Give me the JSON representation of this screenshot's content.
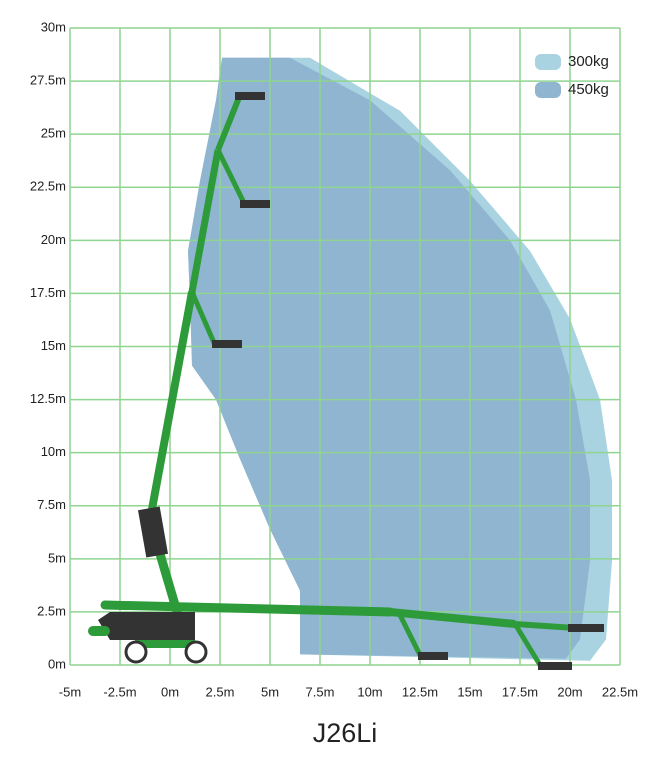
{
  "chart_data": {
    "type": "range",
    "title": "J26Li",
    "xlim": [
      -5,
      22.5
    ],
    "ylim": [
      0,
      30
    ],
    "xticks": [
      {
        "value": -5,
        "label": "-5m"
      },
      {
        "value": -2.5,
        "label": "-2.5m"
      },
      {
        "value": 0,
        "label": "0m"
      },
      {
        "value": 2.5,
        "label": "2.5m"
      },
      {
        "value": 5,
        "label": "5m"
      },
      {
        "value": 7.5,
        "label": "7.5m"
      },
      {
        "value": 10,
        "label": "10m"
      },
      {
        "value": 12.5,
        "label": "12.5m"
      },
      {
        "value": 15,
        "label": "15m"
      },
      {
        "value": 17.5,
        "label": "17.5m"
      },
      {
        "value": 20,
        "label": "20m"
      },
      {
        "value": 22.5,
        "label": "22.5m"
      }
    ],
    "yticks": [
      {
        "value": 0,
        "label": "0m"
      },
      {
        "value": 2.5,
        "label": "2.5m"
      },
      {
        "value": 5,
        "label": "5m"
      },
      {
        "value": 7.5,
        "label": "7.5m"
      },
      {
        "value": 10,
        "label": "10m"
      },
      {
        "value": 12.5,
        "label": "12.5m"
      },
      {
        "value": 15,
        "label": "15m"
      },
      {
        "value": 17.5,
        "label": "17.5m"
      },
      {
        "value": 20,
        "label": "20m"
      },
      {
        "value": 22.5,
        "label": "22.5m"
      },
      {
        "value": 25,
        "label": "25m"
      },
      {
        "value": 27.5,
        "label": "27.5m"
      },
      {
        "value": 30,
        "label": "30m"
      }
    ],
    "grid": true,
    "grid_color": "#8fd48f",
    "legend": "top-right",
    "series": [
      {
        "name": "300kg",
        "color": "#a9d3e0",
        "x": [
          2.6,
          7.0,
          11.5,
          15,
          18,
          20,
          21.5,
          22.1,
          22.1,
          21.8,
          21,
          6.5,
          6.5,
          5,
          3.5,
          2.3,
          1.1,
          1,
          0.9,
          1.5,
          2.3
        ],
        "y": [
          28.6,
          28.6,
          26.1,
          22.8,
          19.5,
          16.3,
          12.5,
          8.7,
          4.9,
          1.2,
          0.2,
          0.5,
          3.5,
          6.4,
          9.7,
          12.5,
          14.1,
          17.2,
          19.5,
          22.8,
          26.6
        ]
      },
      {
        "name": "450kg",
        "color": "#8fb5d0",
        "x": [
          2.6,
          6,
          10,
          14,
          17,
          19,
          20.3,
          21,
          21,
          20.5,
          19.8,
          6.5,
          6.5,
          5,
          3.5,
          2.3,
          1.1,
          1,
          0.9,
          1.5,
          2.3
        ],
        "y": [
          28.6,
          28.6,
          26.6,
          23.3,
          20,
          16.7,
          12.5,
          8.7,
          4.9,
          1.2,
          0.3,
          0.5,
          3.5,
          6.4,
          9.7,
          12.5,
          14.1,
          17.2,
          19.5,
          22.8,
          26.6
        ]
      }
    ]
  }
}
